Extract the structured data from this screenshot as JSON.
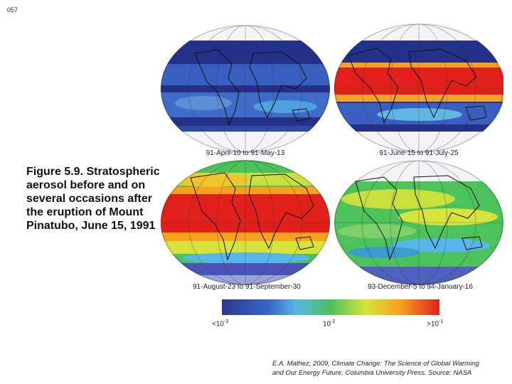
{
  "slide_number": "057",
  "caption": "Figure 5.9. Stratospheric aerosol before and on several occasions after the eruption of Mount Pinatubo, June 15, 1991",
  "panels": [
    {
      "label": "91-April-10 to 91-May-13"
    },
    {
      "label": "91-June-15 to 91-July-25"
    },
    {
      "label": "91-August-23 to 91-September-30"
    },
    {
      "label": "93-December-5 to 94-January-16"
    }
  ],
  "color_scale": {
    "colors": [
      "#2a3a8f",
      "#3a66c8",
      "#57b6e8",
      "#4cc25a",
      "#d6e43a",
      "#f6a21c",
      "#e1201c"
    ],
    "ticks": [
      {
        "base": "<10",
        "exp": "-3"
      },
      {
        "base": "10",
        "exp": "-2"
      },
      {
        "base": ">10",
        "exp": "-1"
      }
    ]
  },
  "credit": {
    "line1": "E.A. Mathez, 2009, Climate Change: The Science of Global Warming",
    "line2": "and Our Energy Future, Columbia University Press. Source: NASA"
  }
}
